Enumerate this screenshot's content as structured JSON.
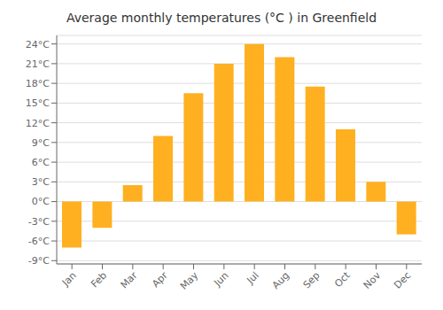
{
  "chart_data": {
    "type": "bar",
    "title": "Average monthly temperatures (°C ) in Greenfield",
    "categories": [
      "Jan",
      "Feb",
      "Mar",
      "Apr",
      "May",
      "Jun",
      "Jul",
      "Aug",
      "Sep",
      "Oct",
      "Nov",
      "Dec"
    ],
    "values": [
      -7.0,
      -4.0,
      2.5,
      10.0,
      16.5,
      21.0,
      24.0,
      22.0,
      17.5,
      11.0,
      3.0,
      -5.0
    ],
    "color": "#FFB020",
    "ylim": [
      -9.5,
      25.3
    ],
    "yticks": [
      {
        "value": -9,
        "label": "-9°C"
      },
      {
        "value": -6,
        "label": "-6°C"
      },
      {
        "value": -3,
        "label": "-3°C"
      },
      {
        "value": 0,
        "label": "0°C"
      },
      {
        "value": 3,
        "label": "3°C"
      },
      {
        "value": 6,
        "label": "6°C"
      },
      {
        "value": 9,
        "label": "9°C"
      },
      {
        "value": 12,
        "label": "12°C"
      },
      {
        "value": 15,
        "label": "15°C"
      },
      {
        "value": 18,
        "label": "18°C"
      },
      {
        "value": 21,
        "label": "21°C"
      },
      {
        "value": 24,
        "label": "24°C"
      }
    ],
    "grid": true
  }
}
